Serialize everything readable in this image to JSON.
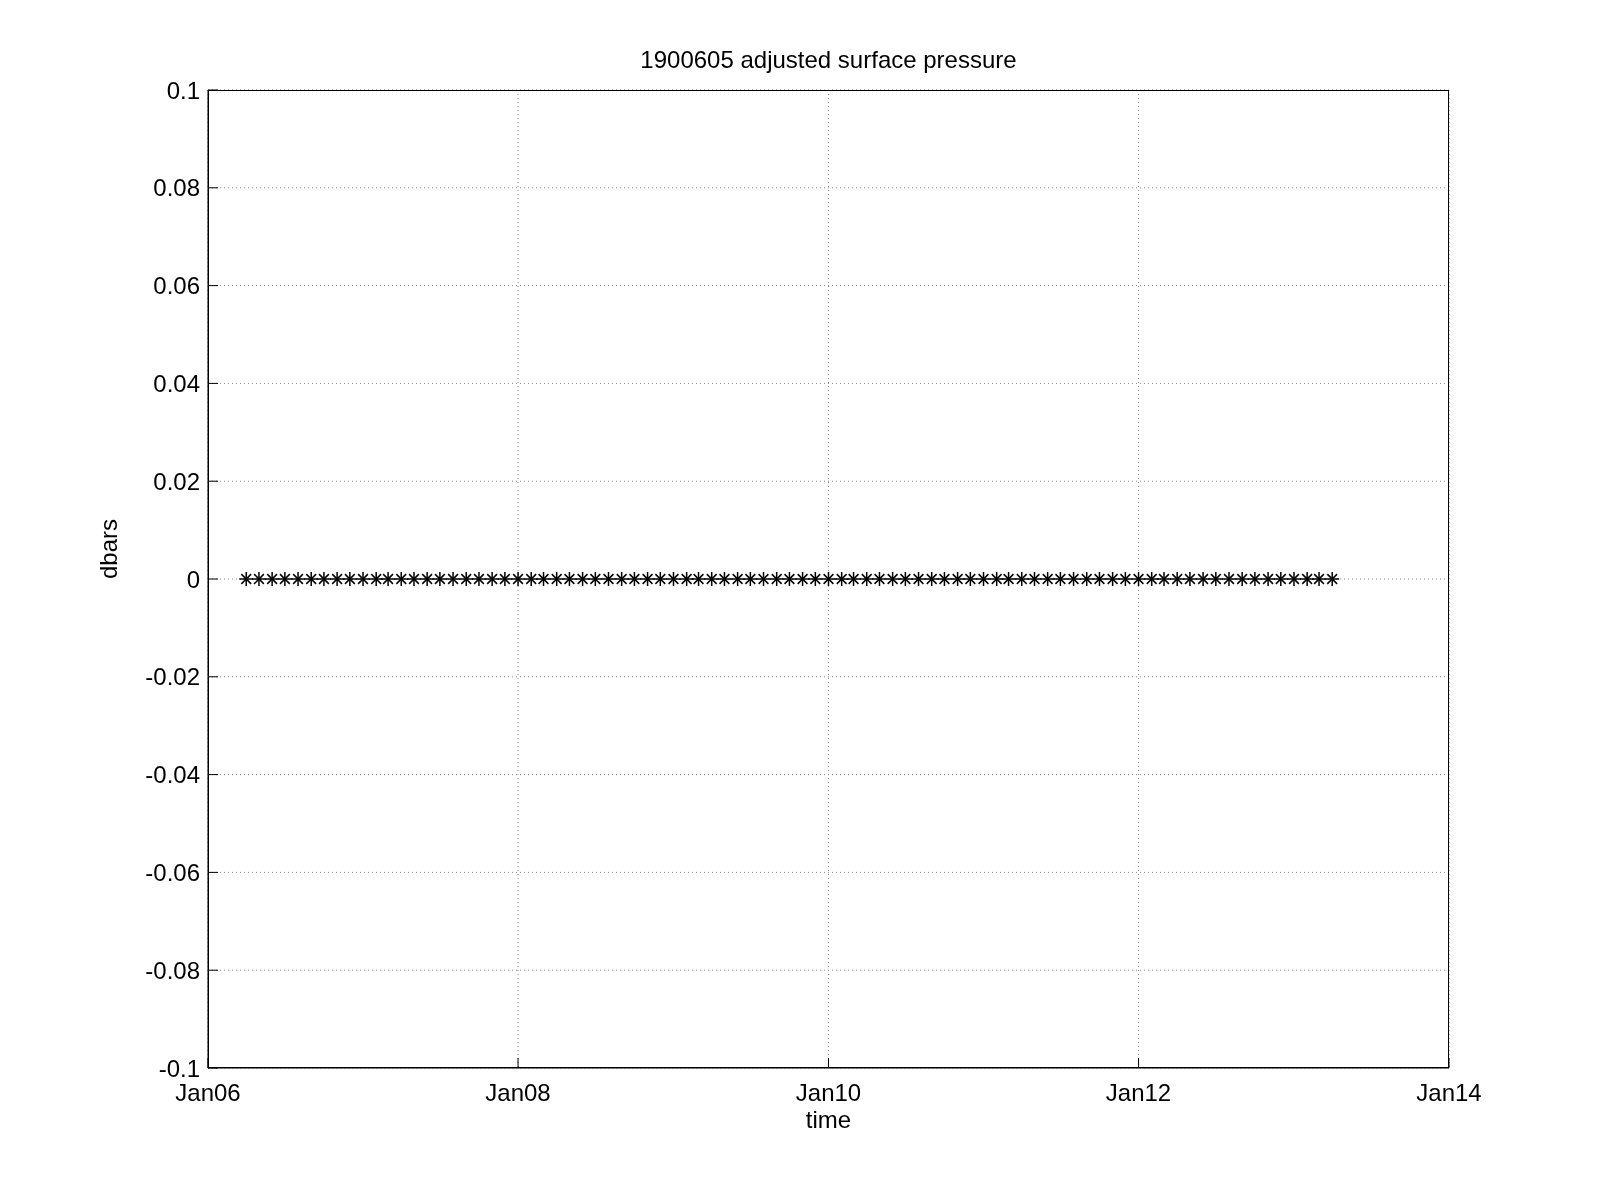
{
  "chart_data": {
    "type": "scatter",
    "title": "1900605 adjusted surface pressure",
    "xlabel": "time",
    "ylabel": "dbars",
    "x": [
      "2006-04",
      "2006-05",
      "2006-06",
      "2006-07",
      "2006-08",
      "2006-09",
      "2006-10",
      "2006-11",
      "2006-12",
      "2007-01",
      "2007-02",
      "2007-03",
      "2007-04",
      "2007-05",
      "2007-06",
      "2007-07",
      "2007-08",
      "2007-09",
      "2007-10",
      "2007-11",
      "2007-12",
      "2008-01",
      "2008-02",
      "2008-03",
      "2008-04",
      "2008-05",
      "2008-06",
      "2008-07",
      "2008-08",
      "2008-09",
      "2008-10",
      "2008-11",
      "2008-12",
      "2009-01",
      "2009-02",
      "2009-03",
      "2009-04",
      "2009-05",
      "2009-06",
      "2009-07",
      "2009-08",
      "2009-09",
      "2009-10",
      "2009-11",
      "2009-12",
      "2010-01",
      "2010-02",
      "2010-03",
      "2010-04",
      "2010-05",
      "2010-06",
      "2010-07",
      "2010-08",
      "2010-09",
      "2010-10",
      "2010-11",
      "2010-12",
      "2011-01",
      "2011-02",
      "2011-03",
      "2011-04",
      "2011-05",
      "2011-06",
      "2011-07",
      "2011-08",
      "2011-09",
      "2011-10",
      "2011-11",
      "2011-12",
      "2012-01",
      "2012-02",
      "2012-03",
      "2012-04",
      "2012-05",
      "2012-06",
      "2012-07",
      "2012-08",
      "2012-09",
      "2012-10",
      "2012-11",
      "2012-12",
      "2013-01",
      "2013-02",
      "2013-03",
      "2013-04"
    ],
    "series": [
      {
        "color": "#000000",
        "values": [
          0,
          0,
          0,
          0,
          0,
          0,
          0,
          0,
          0,
          0,
          0,
          0,
          0,
          0,
          0,
          0,
          0,
          0,
          0,
          0,
          0,
          0,
          0,
          0,
          0,
          0,
          0,
          0,
          0,
          0,
          0,
          0,
          0,
          0,
          0,
          0,
          0,
          0,
          0,
          0,
          0,
          0,
          0,
          0,
          0,
          0,
          0,
          0,
          0,
          0,
          0,
          0,
          0,
          0,
          0,
          0,
          0,
          0,
          0,
          0,
          0,
          0,
          0,
          0,
          0,
          0,
          0,
          0,
          0,
          0,
          0,
          0,
          0,
          0,
          0,
          0,
          0,
          0,
          0,
          0,
          0,
          0,
          0,
          0,
          0
        ]
      }
    ],
    "xlim": [
      "2006-01",
      "2014-01"
    ],
    "xticks": [
      {
        "value": "2006-01",
        "label": "Jan06"
      },
      {
        "value": "2008-01",
        "label": "Jan08"
      },
      {
        "value": "2010-01",
        "label": "Jan10"
      },
      {
        "value": "2012-01",
        "label": "Jan12"
      },
      {
        "value": "2014-01",
        "label": "Jan14"
      }
    ],
    "ylim": [
      -0.1,
      0.1
    ],
    "yticks": [
      -0.1,
      -0.08,
      -0.06,
      -0.04,
      -0.02,
      0,
      0.02,
      0.04,
      0.06,
      0.08,
      0.1
    ],
    "grid": true,
    "marker": "cross"
  }
}
